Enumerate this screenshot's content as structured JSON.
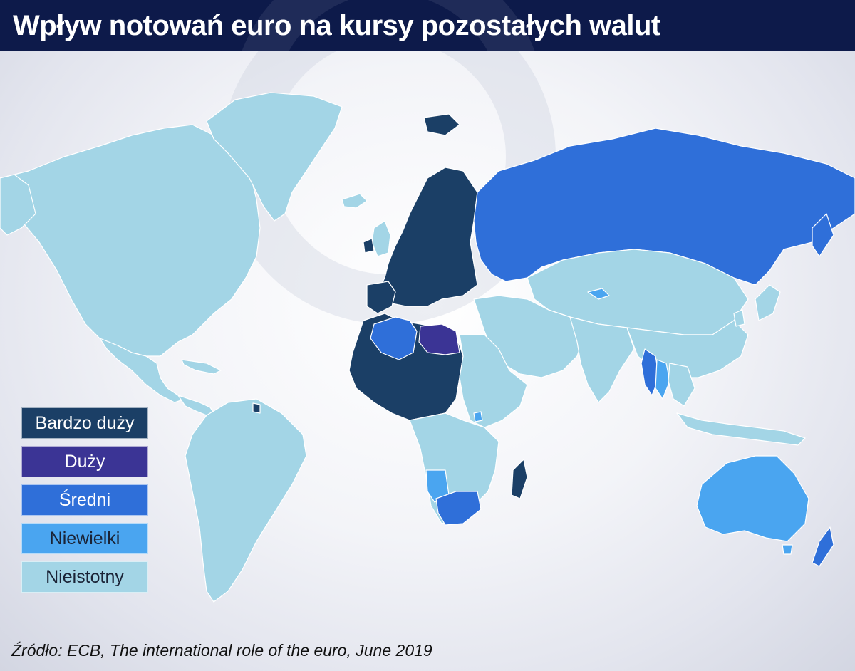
{
  "title": "Wpływ notowań euro na kursy pozostałych walut",
  "source": "Źródło: ECB, The international role of the euro, June 2019",
  "colors": {
    "very_large": "#1b3f66",
    "large": "#3b3495",
    "medium": "#2f6fd9",
    "small": "#4aa5f0",
    "insignificant": "#a3d5e6",
    "title_bg": "#0d1a4a"
  },
  "legend": [
    {
      "label": "Bardzo duży",
      "color": "#1b3f66",
      "text_color": "light"
    },
    {
      "label": "Duży",
      "color": "#3b3495",
      "text_color": "light"
    },
    {
      "label": "Średni",
      "color": "#2f6fd9",
      "text_color": "light"
    },
    {
      "label": "Niewielki",
      "color": "#4aa5f0",
      "text_color": "dark"
    },
    {
      "label": "Nieistotny",
      "color": "#a3d5e6",
      "text_color": "dark"
    }
  ]
}
